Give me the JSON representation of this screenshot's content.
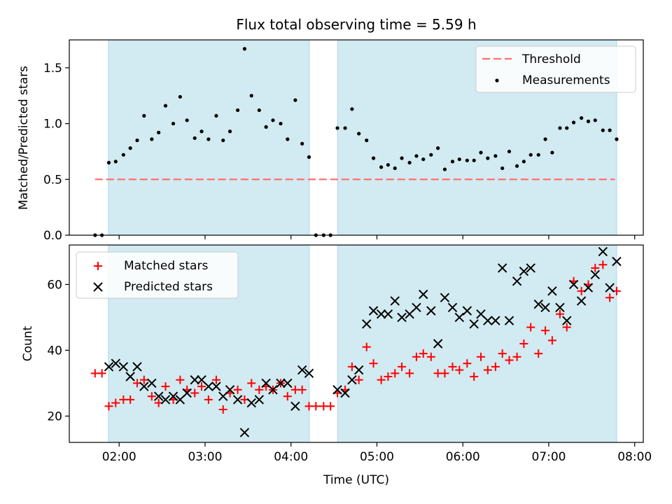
{
  "title": "Flux total observing time = 5.59 h",
  "colors": {
    "shade": "#add8e6",
    "threshold": "#ff7070",
    "matched": "#ff0000",
    "predicted": "#000000",
    "measurement": "#000000"
  },
  "chart_data": [
    {
      "type": "scatter",
      "panel": "top",
      "ylabel": "Matched/Predicted stars",
      "xlabel": "",
      "ylim": [
        0,
        1.75
      ],
      "yticks": [
        "0.0",
        "0.5",
        "1.0",
        "1.5"
      ],
      "ytick_values": [
        0,
        0.5,
        1.0,
        1.5
      ],
      "xlim_hours": [
        1.42,
        8.1
      ],
      "shaded_intervals_hours": [
        [
          1.875,
          4.213
        ],
        [
          4.542,
          7.79
        ]
      ],
      "legend": {
        "position": "upper right",
        "entries": [
          "Threshold",
          "Measurements"
        ]
      },
      "threshold": {
        "name": "Threshold",
        "value": 0.5,
        "x_range_hours": [
          1.72,
          7.77
        ]
      },
      "series": [
        {
          "name": "Measurements",
          "x": [
            1.72,
            1.8,
            1.88,
            1.96,
            2.05,
            2.13,
            2.21,
            2.29,
            2.38,
            2.46,
            2.54,
            2.63,
            2.71,
            2.79,
            2.88,
            2.96,
            3.04,
            3.13,
            3.21,
            3.29,
            3.38,
            3.46,
            3.54,
            3.63,
            3.71,
            3.79,
            3.88,
            3.96,
            4.05,
            4.13,
            4.21,
            4.29,
            4.38,
            4.46,
            4.54,
            4.63,
            4.71,
            4.79,
            4.88,
            4.96,
            5.05,
            5.13,
            5.21,
            5.29,
            5.38,
            5.46,
            5.54,
            5.63,
            5.71,
            5.79,
            5.88,
            5.96,
            6.05,
            6.13,
            6.21,
            6.29,
            6.38,
            6.46,
            6.54,
            6.63,
            6.71,
            6.79,
            6.88,
            6.96,
            7.04,
            7.13,
            7.21,
            7.29,
            7.38,
            7.46,
            7.54,
            7.63,
            7.71,
            7.79
          ],
          "y": [
            0.0,
            0.0,
            0.65,
            0.66,
            0.72,
            0.78,
            0.85,
            1.07,
            0.86,
            0.92,
            1.16,
            1.0,
            1.24,
            1.03,
            0.87,
            0.93,
            0.86,
            1.07,
            0.85,
            0.93,
            1.12,
            1.67,
            1.25,
            1.12,
            0.97,
            1.03,
            1.0,
            0.86,
            1.21,
            0.82,
            0.7,
            0.0,
            0.0,
            0.0,
            0.96,
            0.96,
            1.13,
            0.91,
            0.85,
            0.69,
            0.61,
            0.63,
            0.6,
            0.69,
            0.65,
            0.71,
            0.68,
            0.72,
            0.78,
            0.59,
            0.66,
            0.68,
            0.67,
            0.67,
            0.74,
            0.69,
            0.71,
            0.6,
            0.75,
            0.62,
            0.66,
            0.72,
            0.72,
            0.86,
            0.74,
            0.96,
            0.96,
            1.01,
            1.05,
            1.02,
            1.03,
            0.94,
            0.94,
            0.86
          ]
        }
      ]
    },
    {
      "type": "scatter",
      "panel": "bottom",
      "xlabel": "Time (UTC)",
      "ylabel": "Count",
      "ylim": [
        12,
        72
      ],
      "yticks": [
        "20",
        "40",
        "60"
      ],
      "ytick_values": [
        20,
        40,
        60
      ],
      "xlim_hours": [
        1.42,
        8.1
      ],
      "xticks": [
        "02:00",
        "03:00",
        "04:00",
        "05:00",
        "06:00",
        "07:00",
        "08:00"
      ],
      "xtick_values_hours": [
        2,
        3,
        4,
        5,
        6,
        7,
        8
      ],
      "shaded_intervals_hours": [
        [
          1.875,
          4.213
        ],
        [
          4.542,
          7.79
        ]
      ],
      "legend": {
        "position": "upper left",
        "entries": [
          "Matched stars",
          "Predicted stars"
        ]
      },
      "series": [
        {
          "name": "Matched stars",
          "marker": "+",
          "x": [
            1.72,
            1.8,
            1.88,
            1.96,
            2.05,
            2.13,
            2.21,
            2.29,
            2.38,
            2.46,
            2.54,
            2.63,
            2.71,
            2.79,
            2.88,
            2.96,
            3.04,
            3.13,
            3.21,
            3.29,
            3.38,
            3.46,
            3.54,
            3.63,
            3.71,
            3.79,
            3.88,
            3.96,
            4.05,
            4.13,
            4.21,
            4.29,
            4.38,
            4.46,
            4.54,
            4.63,
            4.71,
            4.79,
            4.88,
            4.96,
            5.05,
            5.13,
            5.21,
            5.29,
            5.38,
            5.46,
            5.54,
            5.63,
            5.71,
            5.79,
            5.88,
            5.96,
            6.05,
            6.13,
            6.21,
            6.29,
            6.38,
            6.46,
            6.54,
            6.63,
            6.71,
            6.79,
            6.88,
            6.96,
            7.04,
            7.13,
            7.21,
            7.29,
            7.38,
            7.46,
            7.54,
            7.63,
            7.71,
            7.79
          ],
          "y": [
            33,
            33,
            23,
            24,
            25,
            25,
            30,
            31,
            26,
            24,
            29,
            25,
            31,
            28,
            27,
            29,
            25,
            31,
            22,
            27,
            28,
            25,
            30,
            28,
            29,
            28,
            30,
            26,
            28,
            28,
            23,
            23,
            23,
            23,
            27,
            28,
            35,
            31,
            41,
            36,
            31,
            32,
            33,
            35,
            33,
            38,
            39,
            38,
            33,
            33,
            35,
            34,
            36,
            32,
            38,
            34,
            35,
            39,
            37,
            38,
            42,
            47,
            39,
            46,
            43,
            51,
            47,
            61,
            58,
            60,
            65,
            66,
            56,
            58
          ]
        },
        {
          "name": "Predicted stars",
          "marker": "x",
          "x": [
            1.88,
            1.96,
            2.05,
            2.13,
            2.21,
            2.29,
            2.38,
            2.46,
            2.54,
            2.63,
            2.71,
            2.79,
            2.88,
            2.96,
            3.04,
            3.13,
            3.21,
            3.29,
            3.38,
            3.46,
            3.54,
            3.63,
            3.71,
            3.79,
            3.88,
            3.96,
            4.05,
            4.13,
            4.21,
            4.54,
            4.63,
            4.71,
            4.79,
            4.88,
            4.96,
            5.05,
            5.13,
            5.21,
            5.29,
            5.38,
            5.46,
            5.54,
            5.63,
            5.71,
            5.79,
            5.88,
            5.96,
            6.05,
            6.13,
            6.21,
            6.29,
            6.38,
            6.46,
            6.54,
            6.63,
            6.71,
            6.79,
            6.88,
            6.96,
            7.04,
            7.13,
            7.21,
            7.29,
            7.38,
            7.46,
            7.54,
            7.63,
            7.71,
            7.79
          ],
          "y": [
            35,
            36,
            35,
            32,
            35,
            29,
            30,
            26,
            25,
            26,
            25,
            27,
            31,
            31,
            29,
            29,
            26,
            28,
            25,
            15,
            24,
            25,
            30,
            28,
            30,
            30,
            23,
            34,
            33,
            28,
            27,
            31,
            34,
            48,
            52,
            51,
            51,
            55,
            50,
            51,
            53,
            57,
            52,
            42,
            56,
            53,
            50,
            52,
            48,
            51,
            49,
            49,
            65,
            49,
            61,
            64,
            65,
            54,
            53,
            58,
            53,
            49,
            60,
            55,
            59,
            63,
            70,
            59,
            67
          ]
        }
      ]
    }
  ]
}
